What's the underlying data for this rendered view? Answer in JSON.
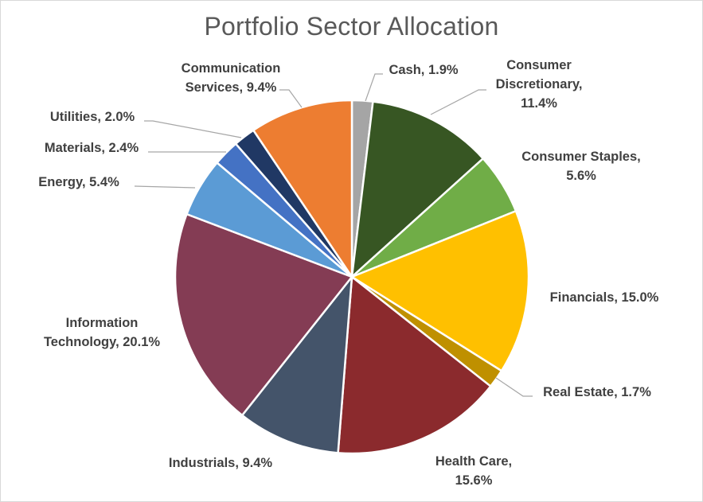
{
  "chart_data": {
    "type": "pie",
    "title": "Portfolio Sector Allocation",
    "categories": [
      "Cash",
      "Consumer Discretionary",
      "Consumer Staples",
      "Financials",
      "Real Estate",
      "Health Care",
      "Industrials",
      "Information Technology",
      "Energy",
      "Materials",
      "Utilities",
      "Communication Services"
    ],
    "values": [
      1.9,
      11.4,
      5.6,
      15.0,
      1.7,
      15.6,
      9.4,
      20.1,
      5.4,
      2.4,
      2.0,
      9.4
    ],
    "colors": [
      "#a5a5a5",
      "#375623",
      "#70ad47",
      "#ffc000",
      "#bf9000",
      "#8b2a2d",
      "#44546a",
      "#843c54",
      "#5b9bd5",
      "#4472c4",
      "#203864",
      "#ed7d31"
    ],
    "labels": [
      [
        "Cash, 1.9%"
      ],
      [
        "Consumer",
        "Discretionary,",
        "11.4%"
      ],
      [
        "Consumer Staples,",
        "5.6%"
      ],
      [
        "Financials, 15.0%"
      ],
      [
        "Real Estate, 1.7%"
      ],
      [
        "Health Care,",
        "15.6%"
      ],
      [
        "Industrials, 9.4%"
      ],
      [
        "Information",
        "Technology, 20.1%"
      ],
      [
        "Energy, 5.4%"
      ],
      [
        "Materials, 2.4%"
      ],
      [
        "Utilities, 2.0%"
      ],
      [
        "Communication",
        "Services, 9.4%"
      ]
    ],
    "legend": "none",
    "start_angle": "12 o'clock, clockwise"
  }
}
